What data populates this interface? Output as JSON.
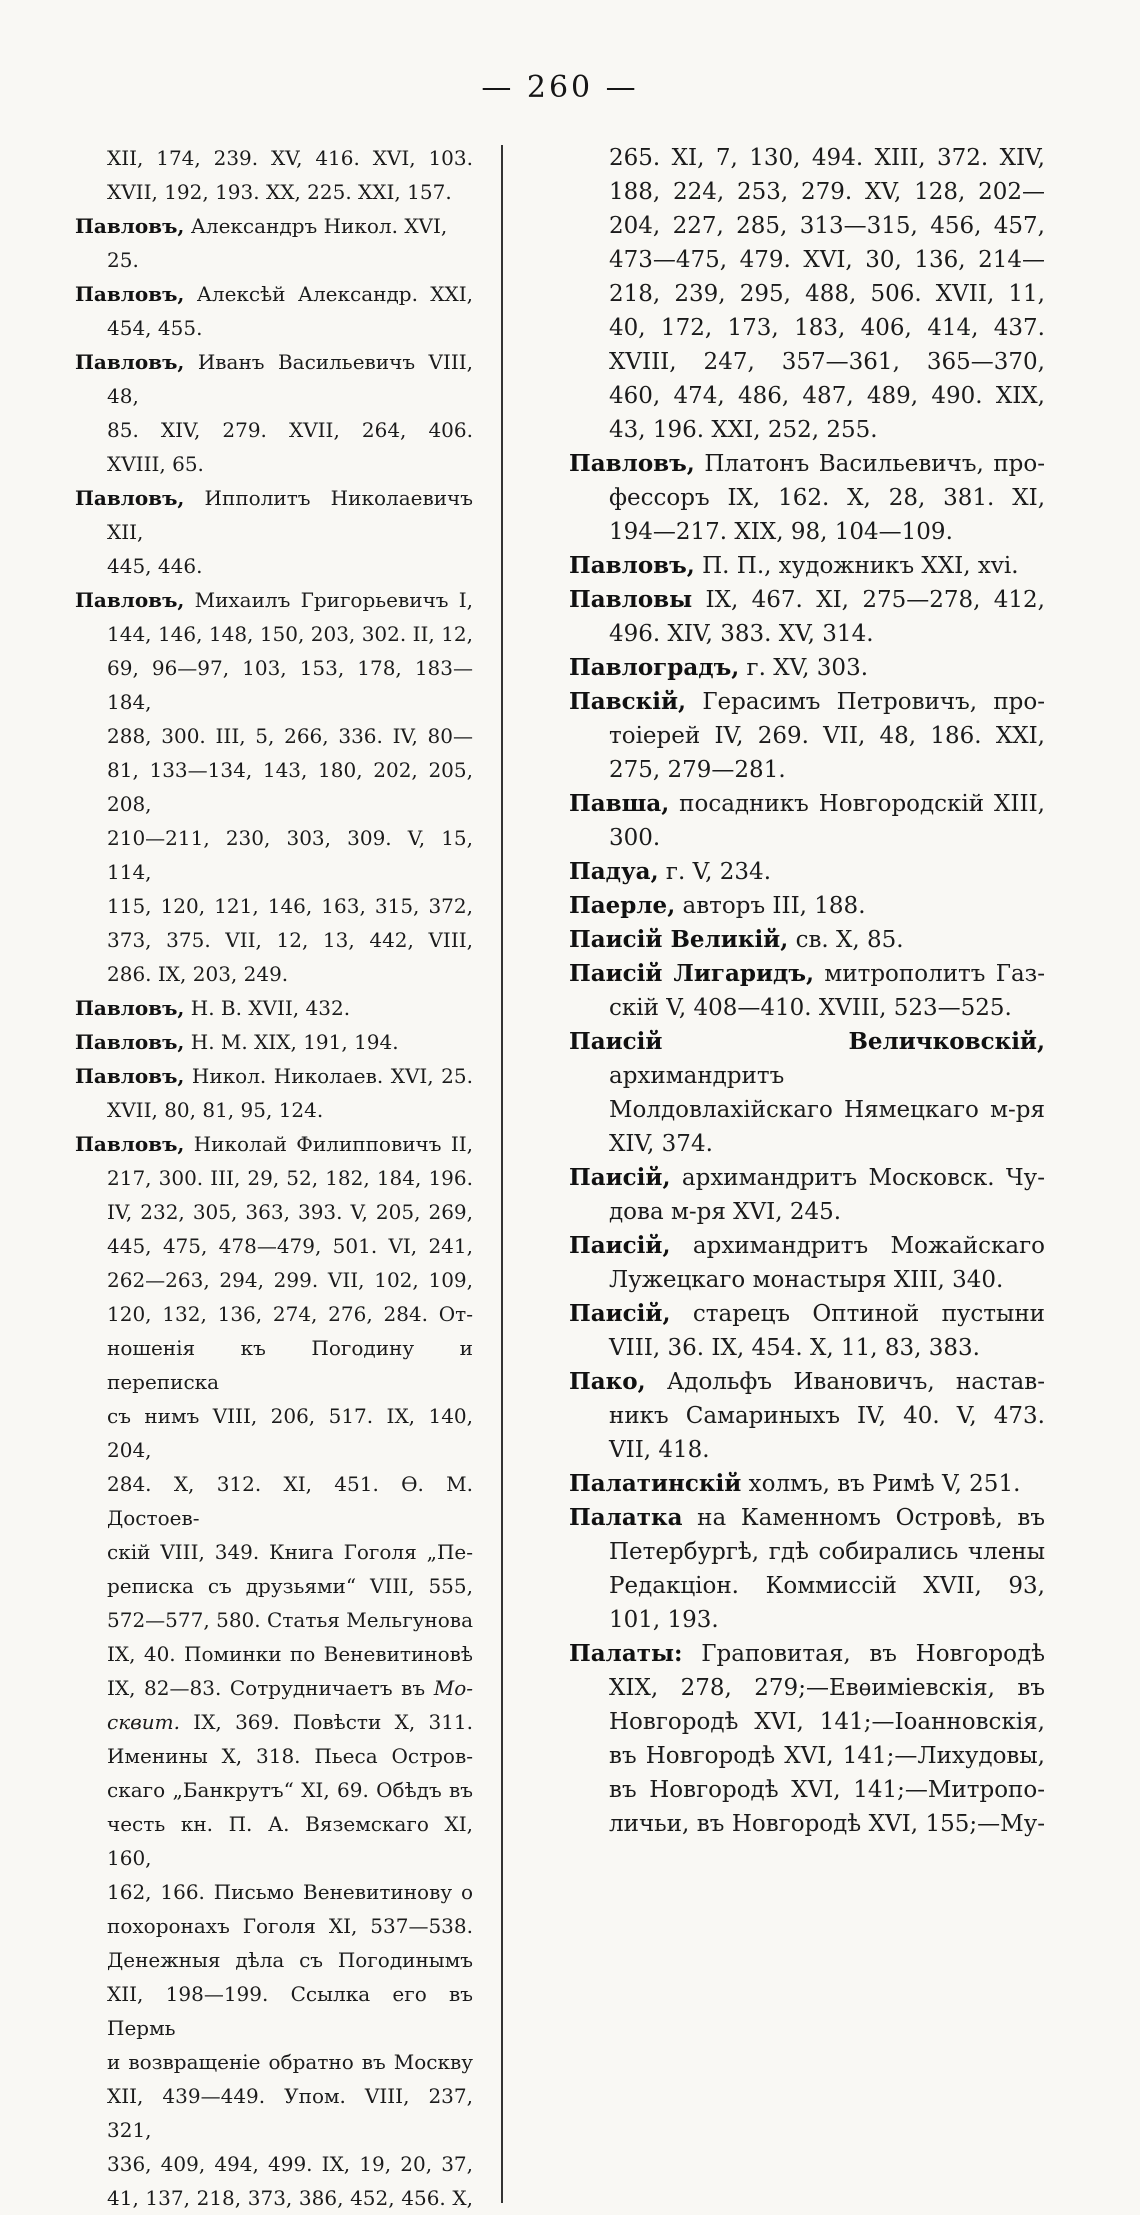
{
  "page": {
    "number_display": "— 260 —"
  },
  "columns": {
    "left": {
      "lines": [
        {
          "ind": true,
          "just": true,
          "seg": [
            {
              "s": "XII, 174, 239. XV, 416. XVI, 103."
            }
          ]
        },
        {
          "ind": true,
          "just": false,
          "seg": [
            {
              "s": "XVII, 192, 193. XX, 225. XXI, 157."
            }
          ]
        },
        {
          "ind": false,
          "just": false,
          "seg": [
            {
              "s": "Павловъ,",
              "st": "b"
            },
            {
              "s": " Александръ Никол. XVI, 25."
            }
          ]
        },
        {
          "ind": false,
          "just": true,
          "seg": [
            {
              "s": "Павловъ,",
              "st": "b"
            },
            {
              "s": " Алексѣй Александр. XXI,"
            }
          ]
        },
        {
          "ind": true,
          "just": false,
          "seg": [
            {
              "s": "454, 455."
            }
          ]
        },
        {
          "ind": false,
          "just": true,
          "seg": [
            {
              "s": "Павловъ,",
              "st": "b"
            },
            {
              "s": " Иванъ Васильевичъ VIII, 48,"
            }
          ]
        },
        {
          "ind": true,
          "just": true,
          "seg": [
            {
              "s": "85. XIV, 279. XVII, 264, 406."
            }
          ]
        },
        {
          "ind": true,
          "just": false,
          "seg": [
            {
              "s": "XVIII, 65."
            }
          ]
        },
        {
          "ind": false,
          "just": true,
          "seg": [
            {
              "s": "Павловъ,",
              "st": "b"
            },
            {
              "s": " Ипполитъ Николаевичъ XII,"
            }
          ]
        },
        {
          "ind": true,
          "just": false,
          "seg": [
            {
              "s": "445, 446."
            }
          ]
        },
        {
          "ind": false,
          "just": true,
          "seg": [
            {
              "s": "Павловъ,",
              "st": "b"
            },
            {
              "s": " Михаилъ Григорьевичъ I,"
            }
          ]
        },
        {
          "ind": true,
          "just": true,
          "seg": [
            {
              "s": "144, 146, 148, 150, 203, 302. II, 12,"
            }
          ]
        },
        {
          "ind": true,
          "just": true,
          "seg": [
            {
              "s": "69, 96—97, 103, 153, 178, 183—184,"
            }
          ]
        },
        {
          "ind": true,
          "just": true,
          "seg": [
            {
              "s": "288, 300. III, 5, 266, 336. IV, 80—"
            }
          ]
        },
        {
          "ind": true,
          "just": true,
          "seg": [
            {
              "s": "81, 133—134, 143, 180, 202, 205, 208,"
            }
          ]
        },
        {
          "ind": true,
          "just": true,
          "seg": [
            {
              "s": "210—211, 230, 303, 309. V, 15, 114,"
            }
          ]
        },
        {
          "ind": true,
          "just": true,
          "seg": [
            {
              "s": "115, 120, 121, 146, 163, 315, 372,"
            }
          ]
        },
        {
          "ind": true,
          "just": true,
          "seg": [
            {
              "s": "373, 375. VII, 12, 13, 442, VIII,"
            }
          ]
        },
        {
          "ind": true,
          "just": false,
          "seg": [
            {
              "s": "286. IX, 203, 249."
            }
          ]
        },
        {
          "ind": false,
          "just": false,
          "seg": [
            {
              "s": "Павловъ,",
              "st": "b"
            },
            {
              "s": " Н. В. XVII, 432."
            }
          ]
        },
        {
          "ind": false,
          "just": false,
          "seg": [
            {
              "s": "Павловъ,",
              "st": "b"
            },
            {
              "s": " Н. М. XIX, 191, 194."
            }
          ]
        },
        {
          "ind": false,
          "just": true,
          "seg": [
            {
              "s": "Павловъ,",
              "st": "b"
            },
            {
              "s": " Никол. Николаев. XVI, 25."
            }
          ]
        },
        {
          "ind": true,
          "just": false,
          "seg": [
            {
              "s": "XVII, 80, 81, 95, 124."
            }
          ]
        },
        {
          "ind": false,
          "just": true,
          "seg": [
            {
              "s": "Павловъ,",
              "st": "b"
            },
            {
              "s": " Николай Филипповичъ II,"
            }
          ]
        },
        {
          "ind": true,
          "just": true,
          "seg": [
            {
              "s": "217, 300. III, 29, 52, 182, 184, 196."
            }
          ]
        },
        {
          "ind": true,
          "just": true,
          "seg": [
            {
              "s": "IV, 232, 305, 363, 393. V, 205, 269,"
            }
          ]
        },
        {
          "ind": true,
          "just": true,
          "seg": [
            {
              "s": "445, 475, 478—479, 501. VI, 241,"
            }
          ]
        },
        {
          "ind": true,
          "just": true,
          "seg": [
            {
              "s": "262—263, 294, 299. VII, 102, 109,"
            }
          ]
        },
        {
          "ind": true,
          "just": true,
          "seg": [
            {
              "s": "120, 132, 136, 274, 276, 284. От-"
            }
          ]
        },
        {
          "ind": true,
          "just": true,
          "seg": [
            {
              "s": "ношенія къ Погодину и переписка"
            }
          ]
        },
        {
          "ind": true,
          "just": true,
          "seg": [
            {
              "s": "съ нимъ VIII, 206, 517. IX, 140, 204,"
            }
          ]
        },
        {
          "ind": true,
          "just": true,
          "seg": [
            {
              "s": "284. X, 312. XI, 451. Ѳ. М. Достоев-"
            }
          ]
        },
        {
          "ind": true,
          "just": true,
          "seg": [
            {
              "s": "скій VIII, 349. Книга Гоголя „Пе-"
            }
          ]
        },
        {
          "ind": true,
          "just": true,
          "seg": [
            {
              "s": "реписка съ друзьями“ VIII, 555,"
            }
          ]
        },
        {
          "ind": true,
          "just": true,
          "seg": [
            {
              "s": "572—577, 580. Статья Мельгунова"
            }
          ]
        },
        {
          "ind": true,
          "just": true,
          "seg": [
            {
              "s": "IX, 40. Поминки по Веневитиновѣ"
            }
          ]
        },
        {
          "ind": true,
          "just": true,
          "seg": [
            {
              "s": "IX, 82—83. Сотрудничаетъ въ "
            },
            {
              "s": "Мо-",
              "st": "i"
            }
          ]
        },
        {
          "ind": true,
          "just": true,
          "seg": [
            {
              "s": "сквит.",
              "st": "i"
            },
            {
              "s": " IX, 369. Повѣсти X, 311."
            }
          ]
        },
        {
          "ind": true,
          "just": true,
          "seg": [
            {
              "s": "Именины X, 318. Пьеса Остров-"
            }
          ]
        },
        {
          "ind": true,
          "just": true,
          "seg": [
            {
              "s": "скаго „Банкрутъ“ XI, 69. Обѣдъ въ"
            }
          ]
        },
        {
          "ind": true,
          "just": true,
          "seg": [
            {
              "s": "честь кн. П. А. Вяземскаго XI, 160,"
            }
          ]
        },
        {
          "ind": true,
          "just": true,
          "seg": [
            {
              "s": "162, 166. Письмо Веневитинову о"
            }
          ]
        },
        {
          "ind": true,
          "just": true,
          "seg": [
            {
              "s": "похоронахъ Гоголя XI, 537—538."
            }
          ]
        },
        {
          "ind": true,
          "just": true,
          "seg": [
            {
              "s": "Денежныя дѣла съ Погодинымъ"
            }
          ]
        },
        {
          "ind": true,
          "just": true,
          "seg": [
            {
              "s": "XII, 198—199. Ссылка его въ Пермь"
            }
          ]
        },
        {
          "ind": true,
          "just": true,
          "seg": [
            {
              "s": "и возвращеніе обратно въ Москву"
            }
          ]
        },
        {
          "ind": true,
          "just": true,
          "seg": [
            {
              "s": "XII, 439—449. Упом. VIII, 237, 321,"
            }
          ]
        },
        {
          "ind": true,
          "just": true,
          "seg": [
            {
              "s": "336, 409, 494, 499. IX, 19, 20, 37,"
            }
          ]
        },
        {
          "ind": true,
          "just": true,
          "seg": [
            {
              "s": "41, 137, 218, 373, 386, 452, 456. X,"
            }
          ]
        }
      ]
    },
    "right": {
      "lines": [
        {
          "ind": true,
          "just": true,
          "seg": [
            {
              "s": "265. XI, 7, 130, 494. XIII, 372. XIV,"
            }
          ]
        },
        {
          "ind": true,
          "just": true,
          "seg": [
            {
              "s": "188, 224, 253, 279. XV, 128, 202—"
            }
          ]
        },
        {
          "ind": true,
          "just": true,
          "seg": [
            {
              "s": "204, 227, 285, 313—315, 456, 457,"
            }
          ]
        },
        {
          "ind": true,
          "just": true,
          "seg": [
            {
              "s": "473—475, 479. XVI, 30, 136, 214—"
            }
          ]
        },
        {
          "ind": true,
          "just": true,
          "seg": [
            {
              "s": "218, 239, 295, 488, 506. XVII, 11,"
            }
          ]
        },
        {
          "ind": true,
          "just": true,
          "seg": [
            {
              "s": "40, 172, 173, 183, 406, 414, 437."
            }
          ]
        },
        {
          "ind": true,
          "just": true,
          "seg": [
            {
              "s": "XVIII, 247, 357—361, 365—370,"
            }
          ]
        },
        {
          "ind": true,
          "just": true,
          "seg": [
            {
              "s": "460, 474, 486, 487, 489, 490. XIX,"
            }
          ]
        },
        {
          "ind": true,
          "just": false,
          "seg": [
            {
              "s": "43, 196. XXI, 252, 255."
            }
          ]
        },
        {
          "ind": false,
          "just": true,
          "seg": [
            {
              "s": "Павловъ,",
              "st": "b"
            },
            {
              "s": " Платонъ Васильевичъ, про-"
            }
          ]
        },
        {
          "ind": true,
          "just": true,
          "seg": [
            {
              "s": "фессоръ IX, 162. X, 28, 381. XI,"
            }
          ]
        },
        {
          "ind": true,
          "just": false,
          "seg": [
            {
              "s": "194—217. XIX, 98, 104—109."
            }
          ]
        },
        {
          "ind": false,
          "just": false,
          "seg": [
            {
              "s": "Павловъ,",
              "st": "b"
            },
            {
              "s": " П. П., художникъ XXI, xvi."
            }
          ]
        },
        {
          "ind": false,
          "just": true,
          "seg": [
            {
              "s": "Павловы",
              "st": "b"
            },
            {
              "s": " IX, 467. XI, 275—278, 412,"
            }
          ]
        },
        {
          "ind": true,
          "just": false,
          "seg": [
            {
              "s": "496. XIV, 383. XV, 314."
            }
          ]
        },
        {
          "ind": false,
          "just": false,
          "seg": [
            {
              "s": "Павлоградъ,",
              "st": "b"
            },
            {
              "s": " г. XV, 303."
            }
          ]
        },
        {
          "ind": false,
          "just": true,
          "seg": [
            {
              "s": "Павскій,",
              "st": "b"
            },
            {
              "s": " Герасимъ Петровичъ, про-"
            }
          ]
        },
        {
          "ind": true,
          "just": true,
          "seg": [
            {
              "s": "тоіерей IV, 269. VII, 48, 186. XXI,"
            }
          ]
        },
        {
          "ind": true,
          "just": false,
          "seg": [
            {
              "s": "275, 279—281."
            }
          ]
        },
        {
          "ind": false,
          "just": true,
          "seg": [
            {
              "s": "Павша,",
              "st": "b"
            },
            {
              "s": " посадникъ Новгородскій XIII,"
            }
          ]
        },
        {
          "ind": true,
          "just": false,
          "seg": [
            {
              "s": "300."
            }
          ]
        },
        {
          "ind": false,
          "just": false,
          "seg": [
            {
              "s": "Падуа,",
              "st": "b"
            },
            {
              "s": " г. V, 234."
            }
          ]
        },
        {
          "ind": false,
          "just": false,
          "seg": [
            {
              "s": "Паерле,",
              "st": "b"
            },
            {
              "s": " авторъ III, 188."
            }
          ]
        },
        {
          "ind": false,
          "just": false,
          "seg": [
            {
              "s": "Паисій Великій,",
              "st": "b"
            },
            {
              "s": " св. X, 85."
            }
          ]
        },
        {
          "ind": false,
          "just": true,
          "seg": [
            {
              "s": "Паисій Лигаридъ,",
              "st": "b"
            },
            {
              "s": " митрополитъ Газ-"
            }
          ]
        },
        {
          "ind": true,
          "just": false,
          "seg": [
            {
              "s": "скій V, 408—410. XVIII, 523—525."
            }
          ]
        },
        {
          "ind": false,
          "just": true,
          "seg": [
            {
              "s": "Паисій Величковскій,",
              "st": "b"
            },
            {
              "s": " архимандритъ"
            }
          ]
        },
        {
          "ind": true,
          "just": true,
          "seg": [
            {
              "s": "Молдовлахійскаго Нямецкаго м-ря"
            }
          ]
        },
        {
          "ind": true,
          "just": false,
          "seg": [
            {
              "s": "XIV, 374."
            }
          ]
        },
        {
          "ind": false,
          "just": true,
          "seg": [
            {
              "s": "Паисій,",
              "st": "b"
            },
            {
              "s": " архимандритъ Московск. Чу-"
            }
          ]
        },
        {
          "ind": true,
          "just": false,
          "seg": [
            {
              "s": "дова м-ря XVI, 245."
            }
          ]
        },
        {
          "ind": false,
          "just": true,
          "seg": [
            {
              "s": "Паисій,",
              "st": "b"
            },
            {
              "s": " архимандритъ Можайскаго"
            }
          ]
        },
        {
          "ind": true,
          "just": false,
          "seg": [
            {
              "s": "Лужецкаго монастыря XIII, 340."
            }
          ]
        },
        {
          "ind": false,
          "just": true,
          "seg": [
            {
              "s": "Паисій,",
              "st": "b"
            },
            {
              "s": " старецъ Оптиной пустыни"
            }
          ]
        },
        {
          "ind": true,
          "just": false,
          "seg": [
            {
              "s": "VIII, 36. IX, 454. X, 11, 83, 383."
            }
          ]
        },
        {
          "ind": false,
          "just": true,
          "seg": [
            {
              "s": "Пако,",
              "st": "b"
            },
            {
              "s": " Адольфъ Ивановичъ, настав-"
            }
          ]
        },
        {
          "ind": true,
          "just": true,
          "seg": [
            {
              "s": "никъ Самариныхъ IV, 40. V, 473."
            }
          ]
        },
        {
          "ind": true,
          "just": false,
          "seg": [
            {
              "s": "VII, 418."
            }
          ]
        },
        {
          "ind": false,
          "just": false,
          "seg": [
            {
              "s": "Палатинскій",
              "st": "b"
            },
            {
              "s": " холмъ, въ Римѣ V, 251."
            }
          ]
        },
        {
          "ind": false,
          "just": true,
          "seg": [
            {
              "s": "Палатка",
              "st": "b"
            },
            {
              "s": " на Каменномъ Островѣ, въ"
            }
          ]
        },
        {
          "ind": true,
          "just": true,
          "seg": [
            {
              "s": "Петербургѣ, гдѣ собирались члены"
            }
          ]
        },
        {
          "ind": true,
          "just": true,
          "seg": [
            {
              "s": "Редакціон. Коммиссій XVII, 93,"
            }
          ]
        },
        {
          "ind": true,
          "just": false,
          "seg": [
            {
              "s": "101, 193."
            }
          ]
        },
        {
          "ind": false,
          "just": true,
          "seg": [
            {
              "s": "Палаты:",
              "st": "b"
            },
            {
              "s": " Граповитая, въ Новгородѣ"
            }
          ]
        },
        {
          "ind": true,
          "just": true,
          "seg": [
            {
              "s": "XIX, 278, 279;—Евѳиміевскія, въ"
            }
          ]
        },
        {
          "ind": true,
          "just": true,
          "seg": [
            {
              "s": "Новгородѣ XVI, 141;—Іоанновскія,"
            }
          ]
        },
        {
          "ind": true,
          "just": true,
          "seg": [
            {
              "s": "въ Новгородѣ XVI, 141;—Лихудовы,"
            }
          ]
        },
        {
          "ind": true,
          "just": true,
          "seg": [
            {
              "s": "въ Новгородѣ XVI, 141;—Митропо-"
            }
          ]
        },
        {
          "ind": true,
          "just": true,
          "seg": [
            {
              "s": "личьи, въ Новгородѣ XVI, 155;—Му-"
            }
          ]
        }
      ]
    }
  }
}
